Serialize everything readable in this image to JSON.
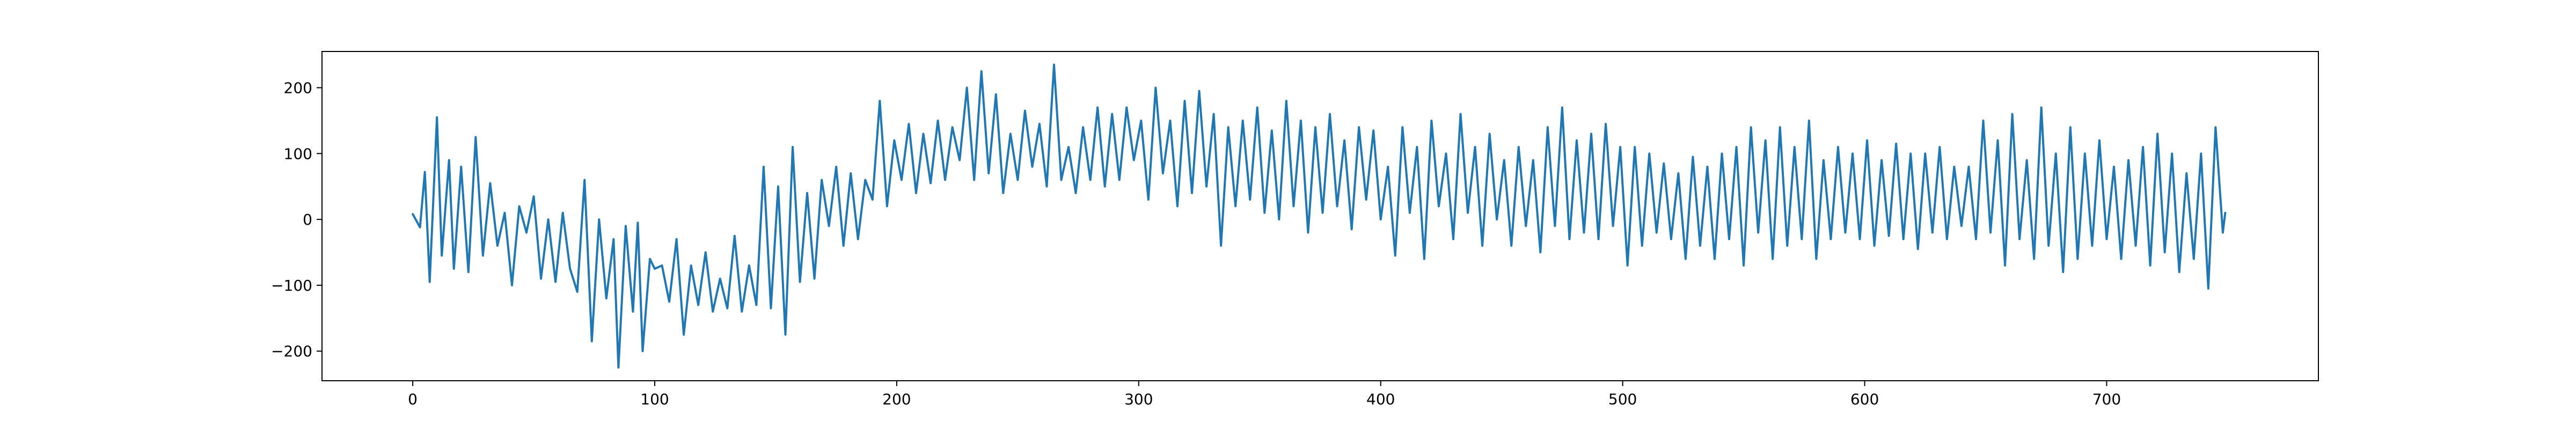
{
  "chart_data": {
    "type": "line",
    "title": "",
    "xlabel": "",
    "ylabel": "",
    "xlim": [
      -37.5,
      787.5
    ],
    "ylim": [
      -245,
      255
    ],
    "x_ticks": [
      0,
      100,
      200,
      300,
      400,
      500,
      600,
      700
    ],
    "y_ticks": [
      -200,
      -100,
      0,
      100,
      200
    ],
    "x_tick_labels": [
      "0",
      "100",
      "200",
      "300",
      "400",
      "500",
      "600",
      "700"
    ],
    "y_tick_labels": [
      "−200",
      "−100",
      "0",
      "100",
      "200"
    ],
    "grid": false,
    "legend": "none",
    "line_color": "#1f77b4",
    "n_points": 750,
    "series": [
      {
        "x_start": 0,
        "x_step": 1,
        "anchors": [
          [
            0,
            8
          ],
          [
            3,
            -12
          ],
          [
            5,
            72
          ],
          [
            7,
            -95
          ],
          [
            10,
            155
          ],
          [
            12,
            -55
          ],
          [
            15,
            90
          ],
          [
            17,
            -75
          ],
          [
            20,
            80
          ],
          [
            23,
            -80
          ],
          [
            26,
            125
          ],
          [
            29,
            -55
          ],
          [
            32,
            55
          ],
          [
            35,
            -40
          ],
          [
            38,
            10
          ],
          [
            41,
            -100
          ],
          [
            44,
            20
          ],
          [
            47,
            -20
          ],
          [
            50,
            35
          ],
          [
            53,
            -90
          ],
          [
            56,
            0
          ],
          [
            59,
            -95
          ],
          [
            62,
            10
          ],
          [
            65,
            -75
          ],
          [
            68,
            -110
          ],
          [
            71,
            60
          ],
          [
            74,
            -185
          ],
          [
            77,
            0
          ],
          [
            80,
            -120
          ],
          [
            83,
            -30
          ],
          [
            85,
            -225
          ],
          [
            88,
            -10
          ],
          [
            91,
            -140
          ],
          [
            93,
            -5
          ],
          [
            95,
            -200
          ],
          [
            98,
            -60
          ],
          [
            100,
            -75
          ],
          [
            103,
            -70
          ],
          [
            106,
            -125
          ],
          [
            109,
            -30
          ],
          [
            112,
            -175
          ],
          [
            115,
            -70
          ],
          [
            118,
            -130
          ],
          [
            121,
            -50
          ],
          [
            124,
            -140
          ],
          [
            127,
            -90
          ],
          [
            130,
            -135
          ],
          [
            133,
            -25
          ],
          [
            136,
            -140
          ],
          [
            139,
            -70
          ],
          [
            142,
            -130
          ],
          [
            145,
            80
          ],
          [
            148,
            -135
          ],
          [
            151,
            50
          ],
          [
            154,
            -175
          ],
          [
            157,
            110
          ],
          [
            160,
            -95
          ],
          [
            163,
            40
          ],
          [
            166,
            -90
          ],
          [
            169,
            60
          ],
          [
            172,
            -10
          ],
          [
            175,
            80
          ],
          [
            178,
            -40
          ],
          [
            181,
            70
          ],
          [
            184,
            -30
          ],
          [
            187,
            60
          ],
          [
            190,
            30
          ],
          [
            193,
            180
          ],
          [
            196,
            20
          ],
          [
            199,
            120
          ],
          [
            202,
            60
          ],
          [
            205,
            145
          ],
          [
            208,
            40
          ],
          [
            211,
            130
          ],
          [
            214,
            55
          ],
          [
            217,
            150
          ],
          [
            220,
            60
          ],
          [
            223,
            140
          ],
          [
            226,
            90
          ],
          [
            229,
            200
          ],
          [
            232,
            60
          ],
          [
            235,
            225
          ],
          [
            238,
            70
          ],
          [
            241,
            190
          ],
          [
            244,
            40
          ],
          [
            247,
            130
          ],
          [
            250,
            60
          ],
          [
            253,
            165
          ],
          [
            256,
            80
          ],
          [
            259,
            145
          ],
          [
            262,
            50
          ],
          [
            265,
            235
          ],
          [
            268,
            60
          ],
          [
            271,
            110
          ],
          [
            274,
            40
          ],
          [
            277,
            140
          ],
          [
            280,
            60
          ],
          [
            283,
            170
          ],
          [
            286,
            50
          ],
          [
            289,
            160
          ],
          [
            292,
            60
          ],
          [
            295,
            170
          ],
          [
            298,
            90
          ],
          [
            301,
            150
          ],
          [
            304,
            30
          ],
          [
            307,
            200
          ],
          [
            310,
            70
          ],
          [
            313,
            150
          ],
          [
            316,
            20
          ],
          [
            319,
            180
          ],
          [
            322,
            40
          ],
          [
            325,
            195
          ],
          [
            328,
            50
          ],
          [
            331,
            160
          ],
          [
            334,
            -40
          ],
          [
            337,
            140
          ],
          [
            340,
            20
          ],
          [
            343,
            150
          ],
          [
            346,
            30
          ],
          [
            349,
            170
          ],
          [
            352,
            10
          ],
          [
            355,
            135
          ],
          [
            358,
            0
          ],
          [
            361,
            180
          ],
          [
            364,
            20
          ],
          [
            367,
            150
          ],
          [
            370,
            -20
          ],
          [
            373,
            140
          ],
          [
            376,
            10
          ],
          [
            379,
            160
          ],
          [
            382,
            20
          ],
          [
            385,
            120
          ],
          [
            388,
            -15
          ],
          [
            391,
            140
          ],
          [
            394,
            30
          ],
          [
            397,
            135
          ],
          [
            400,
            0
          ],
          [
            403,
            80
          ],
          [
            406,
            -55
          ],
          [
            409,
            140
          ],
          [
            412,
            10
          ],
          [
            415,
            110
          ],
          [
            418,
            -60
          ],
          [
            421,
            150
          ],
          [
            424,
            20
          ],
          [
            427,
            100
          ],
          [
            430,
            -30
          ],
          [
            433,
            160
          ],
          [
            436,
            10
          ],
          [
            439,
            110
          ],
          [
            442,
            -40
          ],
          [
            445,
            130
          ],
          [
            448,
            0
          ],
          [
            451,
            90
          ],
          [
            454,
            -40
          ],
          [
            457,
            110
          ],
          [
            460,
            -10
          ],
          [
            463,
            90
          ],
          [
            466,
            -50
          ],
          [
            469,
            140
          ],
          [
            472,
            -10
          ],
          [
            475,
            170
          ],
          [
            478,
            -30
          ],
          [
            481,
            120
          ],
          [
            484,
            -20
          ],
          [
            487,
            130
          ],
          [
            490,
            -30
          ],
          [
            493,
            145
          ],
          [
            496,
            -10
          ],
          [
            499,
            110
          ],
          [
            502,
            -70
          ],
          [
            505,
            110
          ],
          [
            508,
            -40
          ],
          [
            511,
            100
          ],
          [
            514,
            -20
          ],
          [
            517,
            85
          ],
          [
            520,
            -30
          ],
          [
            523,
            70
          ],
          [
            526,
            -60
          ],
          [
            529,
            95
          ],
          [
            532,
            -40
          ],
          [
            535,
            80
          ],
          [
            538,
            -60
          ],
          [
            541,
            100
          ],
          [
            544,
            -30
          ],
          [
            547,
            110
          ],
          [
            550,
            -70
          ],
          [
            553,
            140
          ],
          [
            556,
            -20
          ],
          [
            559,
            120
          ],
          [
            562,
            -60
          ],
          [
            565,
            140
          ],
          [
            568,
            -40
          ],
          [
            571,
            110
          ],
          [
            574,
            -30
          ],
          [
            577,
            150
          ],
          [
            580,
            -60
          ],
          [
            583,
            90
          ],
          [
            586,
            -30
          ],
          [
            589,
            110
          ],
          [
            592,
            -20
          ],
          [
            595,
            100
          ],
          [
            598,
            -30
          ],
          [
            601,
            120
          ],
          [
            604,
            -40
          ],
          [
            607,
            90
          ],
          [
            610,
            -25
          ],
          [
            613,
            115
          ],
          [
            616,
            -30
          ],
          [
            619,
            100
          ],
          [
            622,
            -45
          ],
          [
            625,
            100
          ],
          [
            628,
            -20
          ],
          [
            631,
            110
          ],
          [
            634,
            -30
          ],
          [
            637,
            80
          ],
          [
            640,
            -10
          ],
          [
            643,
            80
          ],
          [
            646,
            -30
          ],
          [
            649,
            150
          ],
          [
            652,
            -20
          ],
          [
            655,
            120
          ],
          [
            658,
            -70
          ],
          [
            661,
            160
          ],
          [
            664,
            -30
          ],
          [
            667,
            90
          ],
          [
            670,
            -60
          ],
          [
            673,
            170
          ],
          [
            676,
            -40
          ],
          [
            679,
            100
          ],
          [
            682,
            -80
          ],
          [
            685,
            140
          ],
          [
            688,
            -60
          ],
          [
            691,
            100
          ],
          [
            694,
            -40
          ],
          [
            697,
            120
          ],
          [
            700,
            -30
          ],
          [
            703,
            80
          ],
          [
            706,
            -60
          ],
          [
            709,
            90
          ],
          [
            712,
            -40
          ],
          [
            715,
            110
          ],
          [
            718,
            -70
          ],
          [
            721,
            130
          ],
          [
            724,
            -50
          ],
          [
            727,
            100
          ],
          [
            730,
            -80
          ],
          [
            733,
            70
          ],
          [
            736,
            -60
          ],
          [
            739,
            100
          ],
          [
            742,
            -105
          ],
          [
            745,
            140
          ],
          [
            748,
            -20
          ],
          [
            749,
            10
          ]
        ]
      }
    ]
  }
}
